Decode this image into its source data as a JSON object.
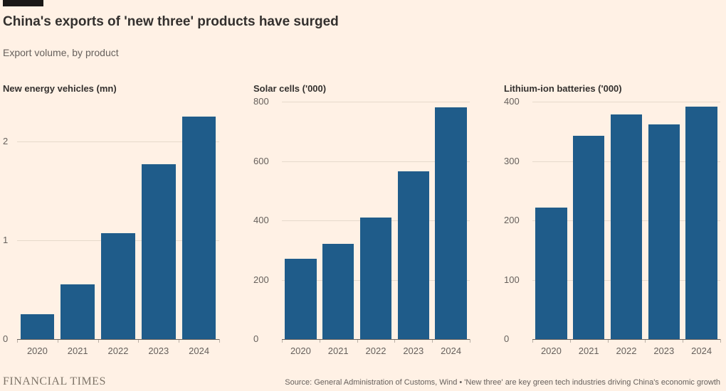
{
  "header": {
    "title": "China's exports of 'new three' products have surged",
    "subtitle": "Export volume, by product"
  },
  "footer": {
    "brand": "FINANCIAL TIMES",
    "source": "Source: General Administration of Customs, Wind • 'New three' are key green tech industries driving China's economic growth"
  },
  "colors": {
    "background": "#FFF1E5",
    "bar": "#1F5C8A",
    "gridline": "#E6D9CB",
    "baseline": "#66605C",
    "text_primary": "#33302E",
    "text_secondary": "#66605C",
    "top_rule": "#1A1817"
  },
  "chart_data": [
    {
      "type": "bar",
      "title": "New energy vehicles (mn)",
      "categories": [
        "2020",
        "2021",
        "2022",
        "2023",
        "2024"
      ],
      "values": [
        0.25,
        0.55,
        1.07,
        1.77,
        2.25
      ],
      "yticks": [
        0,
        1,
        2
      ],
      "ylim": [
        0,
        2.4
      ],
      "xlabel": "",
      "ylabel": "New energy vehicles (mn)",
      "grid": true,
      "legend": false
    },
    {
      "type": "bar",
      "title": "Solar cells ('000)",
      "categories": [
        "2020",
        "2021",
        "2022",
        "2023",
        "2024"
      ],
      "values": [
        270,
        320,
        410,
        565,
        780
      ],
      "yticks": [
        0,
        200,
        400,
        600,
        800
      ],
      "ylim": [
        0,
        800
      ],
      "xlabel": "",
      "ylabel": "Solar cells ('000)",
      "grid": true,
      "legend": false
    },
    {
      "type": "bar",
      "title": "Lithium-ion batteries ('000)",
      "categories": [
        "2020",
        "2021",
        "2022",
        "2023",
        "2024"
      ],
      "values": [
        222,
        342,
        378,
        362,
        392
      ],
      "yticks": [
        0,
        100,
        200,
        300,
        400
      ],
      "ylim": [
        0,
        400
      ],
      "xlabel": "",
      "ylabel": "Lithium-ion batteries ('000)",
      "grid": true,
      "legend": false
    }
  ]
}
